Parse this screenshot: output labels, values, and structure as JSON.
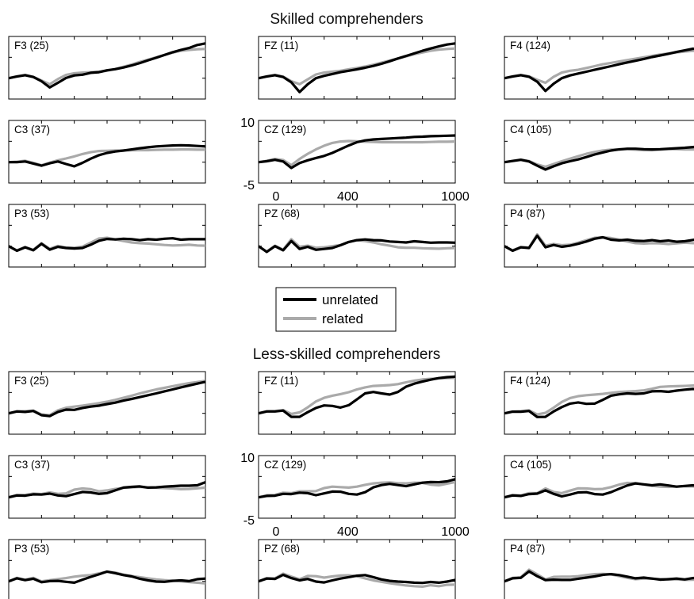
{
  "chart_data": [
    {
      "type": "line",
      "title": "Skilled comprehenders",
      "x_ticks": [
        0,
        400,
        1000
      ],
      "y_ticks": [
        10,
        -5
      ],
      "series": [
        {
          "name": "unrelated",
          "color": "#000000"
        },
        {
          "name": "related",
          "color": "#aaaaaa"
        }
      ],
      "panels": [
        {
          "label": "F3 (25)",
          "unrelated": [
            0,
            0.7,
            1.3,
            0.5,
            -1.3,
            -4,
            -2,
            0.1,
            1.2,
            1.5,
            2.3,
            2.6,
            3.4,
            3.9,
            4.6,
            5.5,
            6.5,
            7.7,
            8.8,
            10,
            11.2,
            12.2,
            13,
            14.3,
            15
          ],
          "related": [
            0,
            0.8,
            1.4,
            0.6,
            -1,
            -2.6,
            -0.4,
            1.4,
            2.1,
            2.4,
            2.6,
            2.8,
            3.2,
            4,
            4.9,
            5.9,
            7,
            8,
            9,
            10,
            11,
            11.8,
            12.2,
            12.5,
            12.6
          ]
        },
        {
          "label": "FZ (11)",
          "unrelated": [
            0,
            0.7,
            1.3,
            0.5,
            -1.8,
            -6,
            -2.6,
            0,
            1,
            1.8,
            2.6,
            3.2,
            3.8,
            4.5,
            5.3,
            6.2,
            7.3,
            8.5,
            9.6,
            10.7,
            11.8,
            12.8,
            13.7,
            14.5,
            15
          ],
          "related": [
            0,
            0.8,
            1.4,
            0.7,
            -1.3,
            -2.6,
            -0.5,
            1.6,
            2.4,
            2.8,
            3.2,
            3.8,
            4.4,
            5,
            5.8,
            6.7,
            7.6,
            8.5,
            9.4,
            10.3,
            11.1,
            11.8,
            12.3,
            12.6,
            12.8
          ]
        },
        {
          "label": "F4 (124)",
          "unrelated": [
            0,
            0.7,
            1.3,
            0.6,
            -1.5,
            -5.5,
            -2.4,
            0,
            1.2,
            2,
            2.8,
            3.6,
            4.4,
            5.2,
            6,
            6.8,
            7.5,
            8.3,
            9.1,
            9.8,
            10.5,
            11.3,
            12,
            12.7,
            12.5
          ],
          "related": [
            0,
            0.8,
            1.4,
            0.8,
            -0.7,
            -2,
            0.6,
            2.4,
            3.2,
            3.6,
            4.4,
            5.2,
            6,
            6.6,
            7.2,
            7.8,
            8.4,
            9,
            9.6,
            10.2,
            10.7,
            11.1,
            11.5,
            11.8,
            11.7
          ]
        },
        {
          "label": "C3 (37)",
          "unrelated": [
            0,
            0,
            0.3,
            -0.6,
            -1.5,
            -0.5,
            0.3,
            -0.8,
            -1.8,
            -0.3,
            1.5,
            3,
            4,
            4.6,
            5,
            5.5,
            6,
            6.4,
            6.8,
            7,
            7.2,
            7.3,
            7.2,
            7,
            6.8
          ],
          "related": [
            0,
            0.2,
            0.6,
            -0.3,
            -1.3,
            -0.2,
            0.8,
            1.6,
            2.5,
            3.5,
            4.3,
            4.8,
            4.9,
            5,
            5,
            5.1,
            5.2,
            5.2,
            5.3,
            5.4,
            5.4,
            5.5,
            5.5,
            5.4,
            5.4
          ]
        },
        {
          "label": "CZ (129)",
          "unrelated": [
            0,
            0.4,
            1,
            0.3,
            -2.5,
            -0.4,
            0.8,
            1.8,
            2.7,
            4,
            5.6,
            7.2,
            8.6,
            9.4,
            9.8,
            10,
            10.2,
            10.4,
            10.6,
            10.9,
            11,
            11.2,
            11.3,
            11.4,
            11.5
          ],
          "related": [
            0,
            0.6,
            1.4,
            0.9,
            -1.3,
            1.4,
            3.6,
            5.5,
            7.1,
            8.3,
            8.9,
            9.1,
            9,
            8.8,
            8.7,
            8.6,
            8.6,
            8.6,
            8.6,
            8.6,
            8.6,
            8.7,
            8.8,
            8.8,
            8.9
          ]
        },
        {
          "label": "C4 (105)",
          "unrelated": [
            0,
            0.5,
            1,
            0.3,
            -1.5,
            -3.2,
            -1.8,
            -0.5,
            0.4,
            1.2,
            2.2,
            3.3,
            4.2,
            5,
            5.5,
            5.8,
            5.8,
            5.6,
            5.5,
            5.6,
            5.8,
            6,
            6.2,
            6.5,
            6.8
          ],
          "related": [
            0,
            0.6,
            1.1,
            0.5,
            -1,
            -2,
            -0.8,
            0.4,
            1.5,
            2.6,
            3.6,
            4.4,
            5,
            5.4,
            5.6,
            5.6,
            5.4,
            5.2,
            5.2,
            5.4,
            5.6,
            5.6,
            5.5,
            5.5,
            5.4
          ]
        },
        {
          "label": "P3 (53)",
          "unrelated": [
            0,
            -2,
            -0.5,
            -1.8,
            1,
            -1.5,
            -0.3,
            -0.8,
            -1,
            -0.8,
            0.6,
            2.3,
            3.1,
            2.9,
            3.2,
            3,
            2.6,
            3,
            2.8,
            3.2,
            3.4,
            2.8,
            3,
            3,
            3
          ],
          "related": [
            0,
            -1.8,
            -0.4,
            -1.6,
            1.3,
            -1.1,
            0.1,
            -0.6,
            -0.7,
            -0.2,
            1.5,
            3.3,
            3.6,
            2.9,
            2.2,
            1.6,
            1.3,
            1.1,
            0.8,
            0.5,
            0.3,
            0.4,
            0.6,
            0.3,
            0.2
          ]
        },
        {
          "label": "PZ (68)",
          "unrelated": [
            0,
            -2.5,
            0,
            -1.8,
            2.2,
            -1.2,
            -0.3,
            -1.6,
            -1.2,
            -0.8,
            0.4,
            1.8,
            2.6,
            2.9,
            2.6,
            2.5,
            2,
            1.8,
            1.6,
            2.1,
            1.8,
            1.5,
            1.6,
            1.6,
            1.5
          ],
          "related": [
            0,
            -2.3,
            0.2,
            -1.5,
            3,
            -0.3,
            0.2,
            -0.7,
            -0.5,
            0,
            0.5,
            1.8,
            2.6,
            2.2,
            1.6,
            0.8,
            0.2,
            -0.5,
            -0.7,
            -0.7,
            -0.9,
            -1,
            -1.1,
            -0.9,
            -0.8
          ]
        },
        {
          "label": "P4 (87)",
          "unrelated": [
            0,
            -2,
            -0.5,
            -0.8,
            4.5,
            -0.5,
            0.5,
            -0.3,
            0.2,
            1,
            2,
            3.2,
            3.8,
            2.8,
            2.5,
            2.8,
            2.3,
            2.2,
            2.6,
            2.1,
            2.4,
            1.9,
            2.1,
            2.7,
            3.2
          ],
          "related": [
            0,
            -1.8,
            -0.4,
            -0.6,
            5.1,
            0.2,
            0.9,
            0.4,
            0.6,
            1.5,
            2.6,
            3.6,
            3.8,
            3.5,
            2.8,
            2,
            1.3,
            1.1,
            1.3,
            1.2,
            0.9,
            1.2,
            1.5,
            1.3,
            1.2
          ]
        }
      ]
    },
    {
      "type": "line",
      "title": "Less-skilled comprehenders",
      "x_ticks": [
        0,
        400,
        1000
      ],
      "y_ticks": [
        10,
        -5
      ],
      "series": [
        {
          "name": "unrelated",
          "color": "#000000"
        },
        {
          "name": "related",
          "color": "#aaaaaa"
        }
      ],
      "panels": [
        {
          "label": "F3 (25)",
          "unrelated": [
            0,
            0.8,
            0.6,
            1,
            -0.8,
            -1.2,
            0.6,
            1.6,
            1.5,
            2.3,
            2.9,
            3.3,
            4,
            4.6,
            5.5,
            6.2,
            7,
            7.8,
            8.6,
            9.5,
            10.3,
            11.2,
            12,
            12.8,
            13.6
          ],
          "related": [
            0,
            0.9,
            0.9,
            1.2,
            -0.5,
            -0.8,
            1.3,
            2.4,
            2.9,
            3.3,
            3.8,
            4.4,
            5,
            5.8,
            6.7,
            7.6,
            8.6,
            9.5,
            10.3,
            11,
            11.7,
            12.4,
            13,
            13.5,
            14
          ]
        },
        {
          "label": "FZ (11)",
          "unrelated": [
            0,
            0.8,
            0.8,
            1.2,
            -1.5,
            -1.5,
            0.5,
            2.3,
            3.4,
            3.2,
            2.5,
            3.5,
            6,
            8.6,
            9.2,
            8.6,
            8.1,
            9.2,
            11.5,
            12.8,
            13.7,
            14.5,
            15.2,
            15.6,
            15.8
          ],
          "related": [
            0,
            0.9,
            1,
            1.4,
            -0.3,
            0.4,
            2.6,
            5.1,
            6.7,
            7.6,
            8.3,
            9.1,
            10.3,
            11.2,
            11.8,
            12,
            12.2,
            12.6,
            13.4,
            14.1,
            14.6,
            14.9,
            15.1,
            15.2,
            15.3
          ]
        },
        {
          "label": "F4 (124)",
          "unrelated": [
            0,
            0.7,
            0.7,
            1,
            -1.6,
            -1.5,
            0.8,
            2.7,
            4.2,
            4.7,
            4.1,
            4.2,
            5.8,
            7.6,
            8.2,
            8.6,
            8.4,
            8.6,
            9.5,
            9.6,
            9.3,
            9.8,
            10.2,
            10.5,
            10.2
          ],
          "related": [
            0,
            0.8,
            0.9,
            1.3,
            -0.5,
            0.2,
            2.4,
            4.9,
            6.6,
            7.4,
            7.8,
            8.1,
            8.4,
            8.8,
            9.2,
            9.4,
            9.6,
            9.9,
            10.6,
            11.4,
            11.6,
            11.7,
            11.8,
            12,
            12.2
          ]
        },
        {
          "label": "C3 (37)",
          "unrelated": [
            0,
            0.8,
            0.7,
            1.3,
            1.2,
            1.6,
            0.8,
            0.5,
            1.4,
            2.3,
            2.1,
            1.5,
            1.8,
            3,
            4.2,
            4.5,
            4.7,
            4.2,
            4.3,
            4.6,
            4.8,
            5,
            5,
            5.2,
            6.5
          ],
          "related": [
            0,
            1,
            1,
            1.6,
            1.4,
            2.1,
            1.5,
            1.7,
            3.3,
            3.8,
            3.5,
            2.6,
            3,
            3.6,
            4.1,
            4.3,
            4.5,
            4.2,
            4.1,
            4,
            3.8,
            3.5,
            3.6,
            3.9,
            4.2
          ]
        },
        {
          "label": "CZ (129)",
          "unrelated": [
            0,
            0.6,
            0.7,
            1.5,
            1.4,
            2,
            1.8,
            0.9,
            1.7,
            2.5,
            2.4,
            1.5,
            1.2,
            2.2,
            4.3,
            5.3,
            5.8,
            5.3,
            4.8,
            5.6,
            6.3,
            6.6,
            6.5,
            6.9,
            7.8
          ],
          "related": [
            0,
            0.9,
            1,
            2,
            1.8,
            2.6,
            2.6,
            2.7,
            4,
            4.6,
            4.4,
            4.2,
            4.6,
            5.4,
            6,
            6.3,
            6.4,
            6.1,
            6,
            6.3,
            6.2,
            5.5,
            5.2,
            5.9,
            6.6
          ]
        },
        {
          "label": "C4 (105)",
          "unrelated": [
            0,
            0.8,
            0.6,
            1.4,
            1.6,
            3,
            1.5,
            0.4,
            1.2,
            2.1,
            2.2,
            1.4,
            1.2,
            2.2,
            3.7,
            5.1,
            6,
            5.6,
            5.2,
            5.6,
            5.1,
            4.6,
            4.9,
            5.2,
            4.9
          ],
          "related": [
            0,
            1,
            0.8,
            1.8,
            1.8,
            3.8,
            2.3,
            1.8,
            2.9,
            3.9,
            3.8,
            3.5,
            3.6,
            4.4,
            5.5,
            6.2,
            6.1,
            5.5,
            5,
            4.6,
            4.5,
            4.6,
            4.8,
            4.7,
            4.5
          ]
        },
        {
          "label": "P3 (53)",
          "unrelated": [
            0,
            1.3,
            0.5,
            1.1,
            -0.4,
            0.1,
            0.2,
            -0.2,
            -0.6,
            0.7,
            1.9,
            3,
            4.2,
            3.5,
            2.7,
            2.1,
            1.1,
            0.4,
            -0.1,
            -0.2,
            0.2,
            0.4,
            0.1,
            0.9,
            1.2
          ],
          "related": [
            0,
            1.5,
            0.7,
            1.5,
            0,
            0.5,
            0.9,
            1.4,
            2,
            2.4,
            2.7,
            3.4,
            4.1,
            3.8,
            2.9,
            2.3,
            1.8,
            1.3,
            0.8,
            0.5,
            0.3,
            0,
            -0.3,
            -0.6,
            -0.9
          ]
        },
        {
          "label": "PZ (68)",
          "unrelated": [
            0,
            1.2,
            1,
            2.8,
            1.4,
            0.4,
            1,
            -0.1,
            -0.5,
            0.4,
            1.2,
            1.8,
            2.4,
            2.7,
            1.8,
            0.8,
            0.2,
            -0.1,
            -0.3,
            -0.6,
            -0.7,
            -0.3,
            -0.6,
            -0.1,
            0.6
          ],
          "related": [
            0,
            1.4,
            1.3,
            3.3,
            2,
            0.9,
            2.3,
            2.2,
            1.6,
            2.1,
            2.5,
            2.6,
            2.2,
            1.3,
            0.4,
            -0.2,
            -0.8,
            -1.3,
            -1.8,
            -2.1,
            -2.3,
            -1.7,
            -2.1,
            -1.5,
            -1.4
          ]
        },
        {
          "label": "P4 (87)",
          "unrelated": [
            0,
            1.3,
            1.5,
            4.3,
            2.2,
            0.5,
            0.7,
            0.6,
            0.6,
            1.1,
            1.6,
            2.1,
            2.8,
            3.1,
            2.7,
            2,
            1.3,
            1.6,
            1.2,
            0.7,
            0.9,
            1.2,
            0.8,
            1.4,
            1.6
          ],
          "related": [
            0,
            1.5,
            1.8,
            5,
            3,
            0.8,
            1.9,
            2,
            2,
            2.2,
            2.7,
            3.1,
            3.2,
            3,
            2.2,
            1.5,
            0.9,
            1.2,
            1.1,
            1,
            0.8,
            0.8,
            0.6,
            0.7,
            0.6
          ]
        }
      ]
    }
  ],
  "legend": {
    "items": [
      {
        "name": "unrelated",
        "color": "#000000"
      },
      {
        "name": "related",
        "color": "#aaaaaa"
      }
    ]
  }
}
